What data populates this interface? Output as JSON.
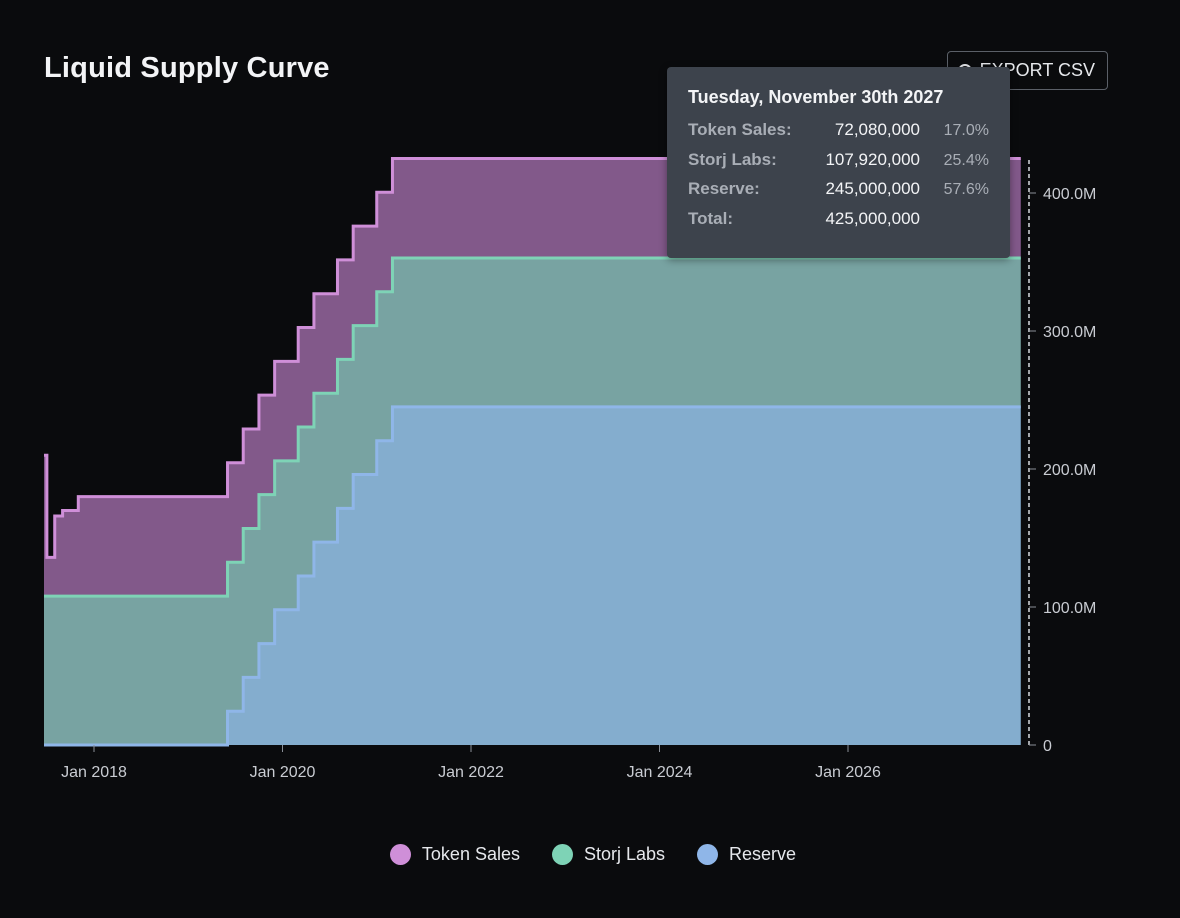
{
  "header": {
    "title": "Liquid Supply Curve",
    "export_label": "EXPORT CSV"
  },
  "tooltip": {
    "date": "Tuesday, November 30th 2027",
    "rows": [
      {
        "label": "Token Sales:",
        "value": "72,080,000",
        "pct": "17.0%"
      },
      {
        "label": "Storj Labs:",
        "value": "107,920,000",
        "pct": "25.4%"
      },
      {
        "label": "Reserve:",
        "value": "245,000,000",
        "pct": "57.6%"
      },
      {
        "label": "Total:",
        "value": "425,000,000",
        "pct": ""
      }
    ]
  },
  "colors": {
    "token_sales": "#cf8fd8",
    "storj_labs": "#7ed3b6",
    "reserve": "#8fb6e8"
  },
  "chart_data": {
    "type": "area",
    "stacked": true,
    "step": true,
    "title": "Liquid Supply Curve",
    "x_ticks": [
      "Jan 2018",
      "Jan 2020",
      "Jan 2022",
      "Jan 2024",
      "Jan 2026"
    ],
    "y_ticks": [
      "0",
      "100.0M",
      "200.0M",
      "300.0M",
      "400.0M"
    ],
    "ylim": [
      0,
      425000000
    ],
    "y_axis_position": "right",
    "legend_position": "bottom",
    "x": [
      "2017-06",
      "2017-07",
      "2017-08",
      "2017-09",
      "2017-10",
      "2017-11",
      "2018-01",
      "2019-06",
      "2019-08",
      "2019-10",
      "2019-12",
      "2020-03",
      "2020-05",
      "2020-08",
      "2020-10",
      "2021-01",
      "2021-03",
      "2021-06",
      "2021-08",
      "2021-11",
      "2027-11"
    ],
    "series": [
      {
        "name": "Reserve",
        "values": [
          0,
          0,
          0,
          0,
          0,
          0,
          0,
          24500000,
          49000000,
          73500000,
          98000000,
          122500000,
          147000000,
          171500000,
          196000000,
          220500000,
          245000000,
          245000000,
          245000000,
          245000000,
          245000000
        ]
      },
      {
        "name": "Storj Labs",
        "values": [
          107920000,
          107920000,
          107920000,
          107920000,
          107920000,
          107920000,
          107920000,
          107920000,
          107920000,
          107920000,
          107920000,
          107920000,
          107920000,
          107920000,
          107920000,
          107920000,
          107920000,
          107920000,
          107920000,
          107920000,
          107920000
        ]
      },
      {
        "name": "Token Sales",
        "values": [
          102000000,
          28000000,
          58000000,
          62000000,
          62000000,
          72080000,
          72080000,
          72080000,
          72080000,
          72080000,
          72080000,
          72080000,
          72080000,
          72080000,
          72080000,
          72080000,
          72080000,
          72080000,
          72080000,
          72080000,
          72080000
        ]
      }
    ]
  },
  "legend": [
    {
      "label": "Token Sales",
      "color": "#cf8fd8"
    },
    {
      "label": "Storj Labs",
      "color": "#7ed3b6"
    },
    {
      "label": "Reserve",
      "color": "#8fb6e8"
    }
  ]
}
